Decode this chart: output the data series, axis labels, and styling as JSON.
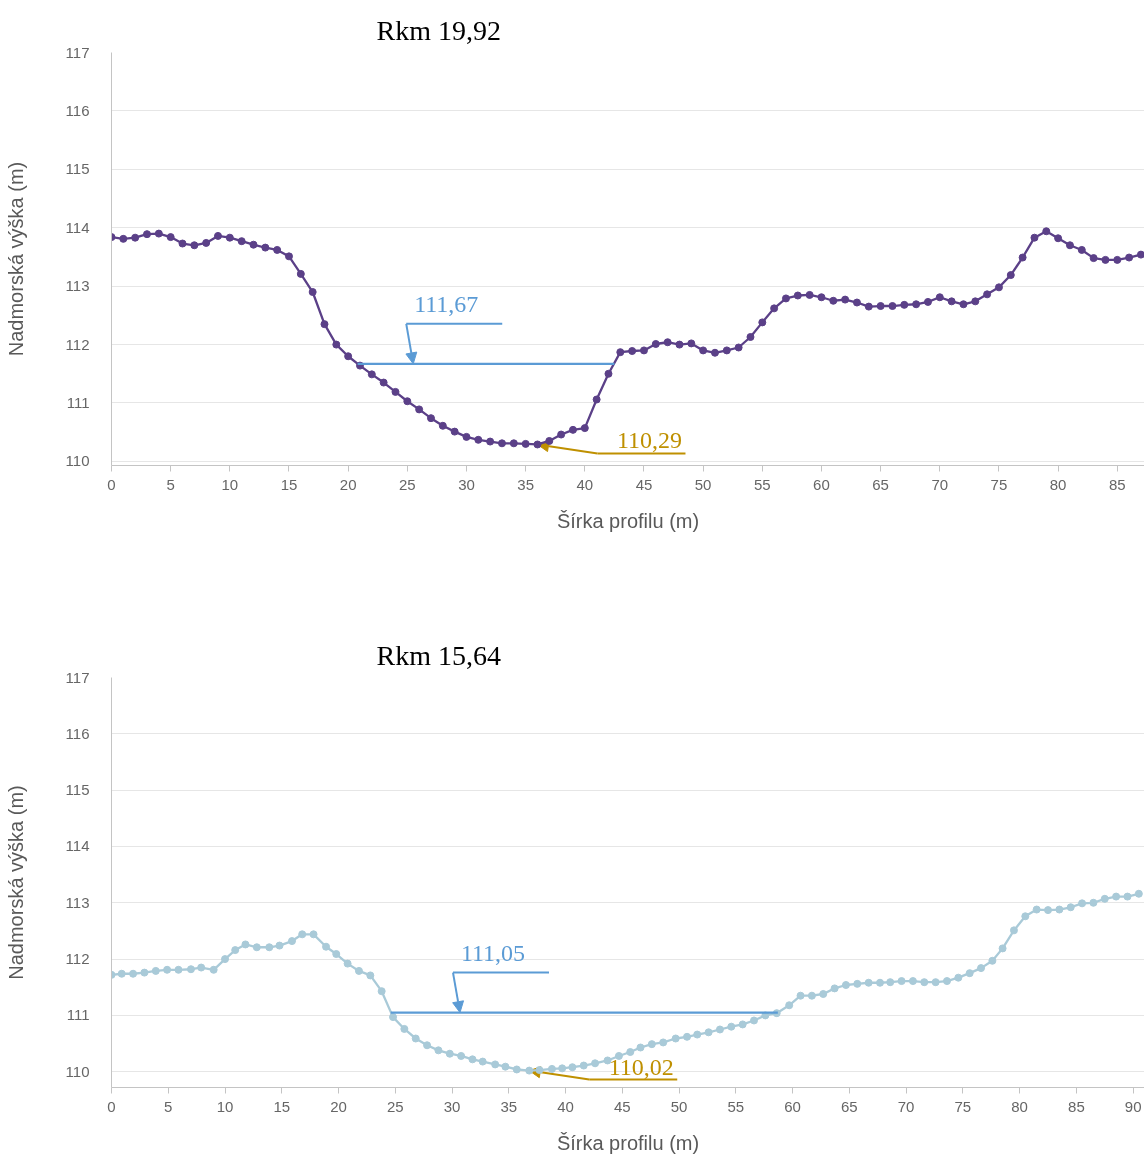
{
  "chart_data": [
    {
      "type": "line",
      "title": "Rkm 19,92",
      "xlabel": "Šírka profilu (m)",
      "ylabel": "Nadmorská výška (m)",
      "xlim": [
        0,
        87.3
      ],
      "ylim": [
        109.93,
        117
      ],
      "xticks": [
        0,
        5,
        10,
        15,
        20,
        25,
        30,
        35,
        40,
        45,
        50,
        55,
        60,
        65,
        70,
        75,
        80,
        85
      ],
      "yticks": [
        110,
        111,
        112,
        113,
        114,
        115,
        116,
        117
      ],
      "grid": "y",
      "marker": "circle",
      "series": [
        {
          "color": "#5b4088",
          "x": [
            0,
            1,
            2,
            3,
            4,
            5,
            6,
            7,
            8,
            9,
            10,
            11,
            12,
            13,
            14,
            15,
            16,
            17,
            18,
            19,
            20,
            21,
            22,
            23,
            24,
            25,
            26,
            27,
            28,
            29,
            30,
            31,
            32,
            33,
            34,
            35,
            36,
            37,
            38,
            39,
            40,
            41,
            42,
            43,
            44,
            45,
            46,
            47,
            48,
            49,
            50,
            51,
            52,
            53,
            54,
            55,
            56,
            57,
            58,
            59,
            60,
            61,
            62,
            63,
            64,
            65,
            66,
            67,
            68,
            69,
            70,
            71,
            72,
            73,
            74,
            75,
            76,
            77,
            78,
            79,
            80,
            81,
            82,
            83,
            84,
            85,
            86,
            87
          ],
          "values": [
            113.84,
            113.81,
            113.83,
            113.89,
            113.9,
            113.84,
            113.73,
            113.7,
            113.74,
            113.86,
            113.83,
            113.77,
            113.71,
            113.66,
            113.62,
            113.51,
            113.21,
            112.9,
            112.35,
            112.0,
            111.8,
            111.64,
            111.49,
            111.35,
            111.19,
            111.03,
            110.89,
            110.74,
            110.61,
            110.51,
            110.42,
            110.37,
            110.34,
            110.31,
            110.31,
            110.3,
            110.29,
            110.35,
            110.46,
            110.54,
            110.57,
            111.06,
            111.5,
            111.87,
            111.89,
            111.9,
            112.01,
            112.04,
            112.0,
            112.02,
            111.9,
            111.86,
            111.9,
            111.95,
            112.13,
            112.38,
            112.62,
            112.79,
            112.84,
            112.85,
            112.81,
            112.75,
            112.77,
            112.72,
            112.65,
            112.66,
            112.66,
            112.68,
            112.69,
            112.73,
            112.81,
            112.74,
            112.69,
            112.74,
            112.86,
            112.98,
            113.19,
            113.49,
            113.83,
            113.94,
            113.82,
            113.7,
            113.62,
            113.48,
            113.45,
            113.45,
            113.49,
            113.54
          ]
        },
        {
          "color": "#5b9bd5",
          "marker": "none",
          "x": [
            20.8,
            42.5
          ],
          "values": [
            111.67,
            111.67
          ]
        }
      ],
      "annotations": [
        {
          "text": "111,67",
          "x": 25.5,
          "y": 111.67
        },
        {
          "text": "110,29",
          "x": 36,
          "y": 110.29
        }
      ]
    },
    {
      "type": "line",
      "title": "Rkm 15,64",
      "xlabel": "Šírka profilu (m)",
      "ylabel": "Nadmorská výška (m)",
      "xlim": [
        0,
        91
      ],
      "ylim": [
        109.72,
        117
      ],
      "xticks": [
        0,
        5,
        10,
        15,
        20,
        25,
        30,
        35,
        40,
        45,
        50,
        55,
        60,
        65,
        70,
        75,
        80,
        85,
        90
      ],
      "yticks": [
        110,
        111,
        112,
        113,
        114,
        115,
        116,
        117
      ],
      "grid": "y",
      "marker": "circle",
      "series": [
        {
          "color": "#a9cad8",
          "x": [
            0,
            0.9,
            1.9,
            2.9,
            3.9,
            4.9,
            5.9,
            7.0,
            7.9,
            9.0,
            10.0,
            10.9,
            11.8,
            12.8,
            13.9,
            14.8,
            15.9,
            16.8,
            17.8,
            18.9,
            19.8,
            20.8,
            21.8,
            22.8,
            23.8,
            24.8,
            25.8,
            26.8,
            27.8,
            28.8,
            29.8,
            30.8,
            31.8,
            32.7,
            33.8,
            34.7,
            35.7,
            36.8,
            37.7,
            38.8,
            39.7,
            40.6,
            41.6,
            42.6,
            43.7,
            44.7,
            45.7,
            46.6,
            47.6,
            48.6,
            49.7,
            50.7,
            51.6,
            52.6,
            53.6,
            54.6,
            55.6,
            56.6,
            57.6,
            58.6,
            59.7,
            60.7,
            61.7,
            62.7,
            63.7,
            64.7,
            65.7,
            66.7,
            67.7,
            68.6,
            69.6,
            70.6,
            71.6,
            72.6,
            73.6,
            74.6,
            75.6,
            76.6,
            77.6,
            78.5,
            79.5,
            80.5,
            81.5,
            82.5,
            83.5,
            84.5,
            85.5,
            86.5,
            87.5,
            88.5,
            89.5,
            90.5
          ],
          "values": [
            111.72,
            111.74,
            111.74,
            111.76,
            111.79,
            111.81,
            111.81,
            111.82,
            111.85,
            111.81,
            112.0,
            112.16,
            112.26,
            112.21,
            112.21,
            112.24,
            112.32,
            112.44,
            112.44,
            112.22,
            112.09,
            111.92,
            111.79,
            111.71,
            111.43,
            110.97,
            110.76,
            110.59,
            110.47,
            110.38,
            110.32,
            110.28,
            110.22,
            110.18,
            110.13,
            110.09,
            110.04,
            110.02,
            110.03,
            110.05,
            110.06,
            110.08,
            110.11,
            110.15,
            110.2,
            110.28,
            110.35,
            110.43,
            110.49,
            110.52,
            110.59,
            110.62,
            110.66,
            110.7,
            110.75,
            110.8,
            110.84,
            110.91,
            111.0,
            111.04,
            111.18,
            111.35,
            111.35,
            111.38,
            111.48,
            111.54,
            111.56,
            111.58,
            111.58,
            111.59,
            111.61,
            111.61,
            111.59,
            111.59,
            111.61,
            111.67,
            111.75,
            111.84,
            111.97,
            112.19,
            112.51,
            112.76,
            112.88,
            112.87,
            112.88,
            112.92,
            112.99,
            113.0,
            113.07,
            113.11,
            113.11,
            113.16
          ]
        },
        {
          "color": "#5b9bd5",
          "marker": "none",
          "x": [
            24.6,
            58.7
          ],
          "values": [
            111.05,
            111.05
          ]
        }
      ],
      "annotations": [
        {
          "text": "111,05",
          "x": 30.7,
          "y": 111.05
        },
        {
          "text": "110,02",
          "x": 36.8,
          "y": 110.02
        }
      ]
    }
  ]
}
